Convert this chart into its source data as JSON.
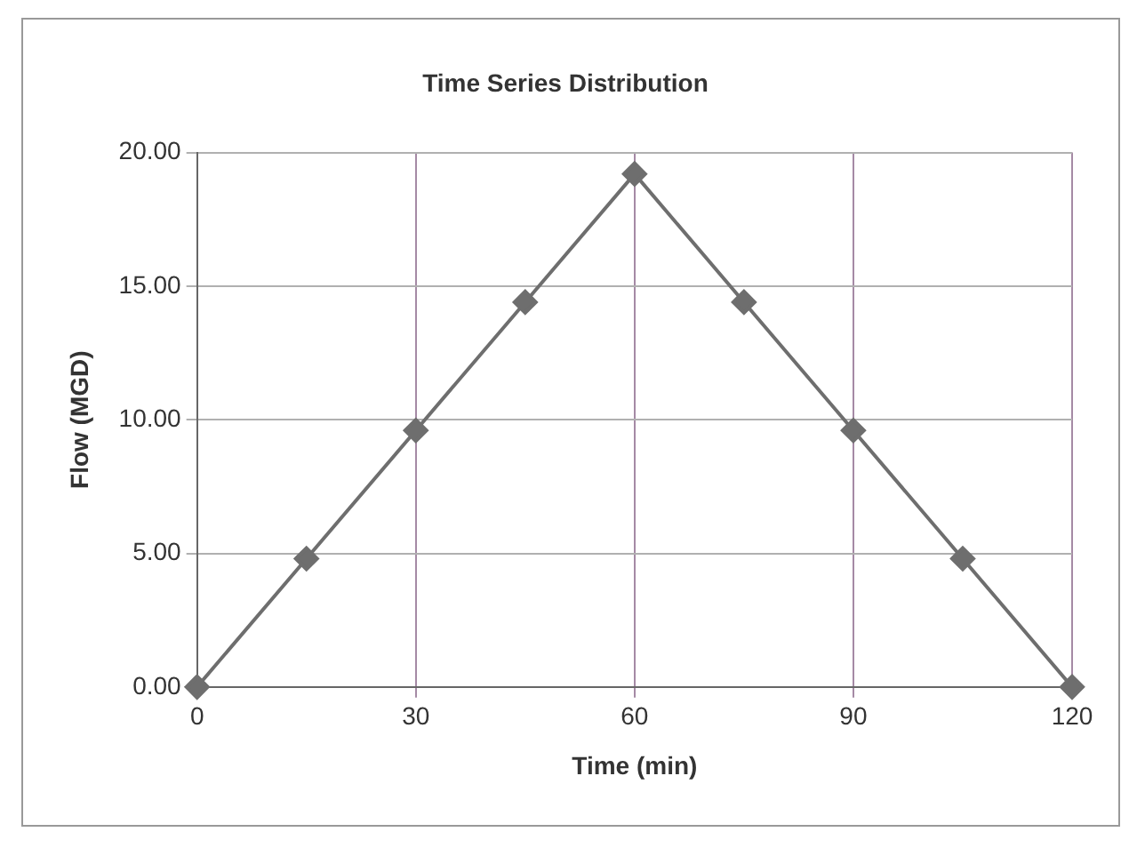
{
  "chart_data": {
    "type": "line",
    "title": "Time Series Distribution",
    "xlabel": "Time (min)",
    "ylabel": "Flow (MGD)",
    "x": [
      0,
      15,
      30,
      45,
      60,
      75,
      90,
      105,
      120
    ],
    "series": [
      {
        "color": "#6e6e6e",
        "values": [
          0,
          4.8,
          9.6,
          14.4,
          19.2,
          14.4,
          9.6,
          4.8,
          0
        ]
      }
    ],
    "xlim": [
      0,
      120
    ],
    "xticks": [
      0,
      30,
      60,
      90,
      120
    ],
    "ylim": [
      0,
      20
    ],
    "yticks": [
      {
        "value": 0,
        "label": "0.00"
      },
      {
        "value": 5,
        "label": "5.00"
      },
      {
        "value": 10,
        "label": "10.00"
      },
      {
        "value": 15,
        "label": "15.00"
      },
      {
        "value": 20,
        "label": "20.00"
      }
    ],
    "grid": true,
    "legend": false,
    "marker": "diamond",
    "line_style": "solid"
  }
}
